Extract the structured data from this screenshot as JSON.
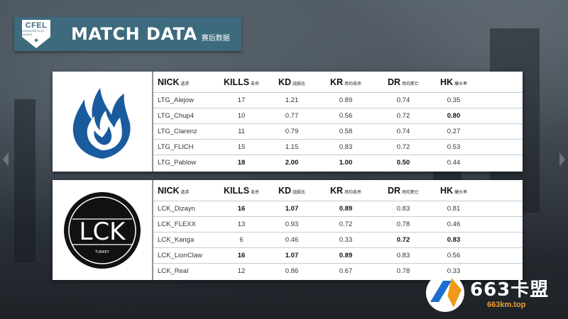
{
  "header": {
    "logo_text": "CFEL",
    "logo_subtext": "CROSSFIRE ELITE LEAGUE",
    "title": "MATCH DATA",
    "subtitle": "赛后数据"
  },
  "columns": [
    {
      "label": "NICK",
      "sub": "选手"
    },
    {
      "label": "KILLS",
      "sub": "击杀"
    },
    {
      "label": "KD",
      "sub": "战损比"
    },
    {
      "label": "KR",
      "sub": "场均击杀"
    },
    {
      "label": "DR",
      "sub": "场均死亡"
    },
    {
      "label": "HK",
      "sub": "爆头率"
    }
  ],
  "teams": [
    {
      "logo_text": "",
      "colors": {
        "primary": "#1a5b9e"
      },
      "players": [
        {
          "nick": "LTG_Alejow",
          "kills": "17",
          "kd": "1.21",
          "kr": "0.89",
          "dr": "0.74",
          "hk": "0.35"
        },
        {
          "nick": "LTG_Chup4",
          "kills": "10",
          "kd": "0.77",
          "kr": "0.56",
          "dr": "0.72",
          "hk": "0.80"
        },
        {
          "nick": "LTG_Clarenz",
          "kills": "11",
          "kd": "0.79",
          "kr": "0.58",
          "dr": "0.74",
          "hk": "0.27"
        },
        {
          "nick": "LTG_FLICH",
          "kills": "15",
          "kd": "1.15",
          "kr": "0.83",
          "dr": "0.72",
          "hk": "0.53"
        },
        {
          "nick": "LTG_Pablow",
          "kills": "18",
          "kd": "2.00",
          "kr": "1.00",
          "dr": "0.50",
          "hk": "0.44"
        }
      ]
    },
    {
      "logo_text": "LCK",
      "logo_subtext": "TURKEY",
      "colors": {
        "primary": "#111111"
      },
      "players": [
        {
          "nick": "LCK_Dizayn",
          "kills": "16",
          "kd": "1.07",
          "kr": "0.89",
          "dr": "0.83",
          "hk": "0.81"
        },
        {
          "nick": "LCK_FLEXX",
          "kills": "13",
          "kd": "0.93",
          "kr": "0.72",
          "dr": "0.78",
          "hk": "0.46"
        },
        {
          "nick": "LCK_Kanga",
          "kills": "6",
          "kd": "0.46",
          "kr": "0.33",
          "dr": "0.72",
          "hk": "0.83"
        },
        {
          "nick": "LCK_LionClaw",
          "kills": "16",
          "kd": "1.07",
          "kr": "0.89",
          "dr": "0.83",
          "hk": "0.56"
        },
        {
          "nick": "LCK_Real",
          "kills": "12",
          "kd": "0.86",
          "kr": "0.67",
          "dr": "0.78",
          "hk": "0.33"
        }
      ]
    }
  ],
  "watermark": {
    "name": "663卡盟",
    "url": "663km.top"
  },
  "colors": {
    "header_bg": "#3d6a7c",
    "accent_orange": "#f09a17",
    "accent_blue": "#1b6fd0"
  }
}
